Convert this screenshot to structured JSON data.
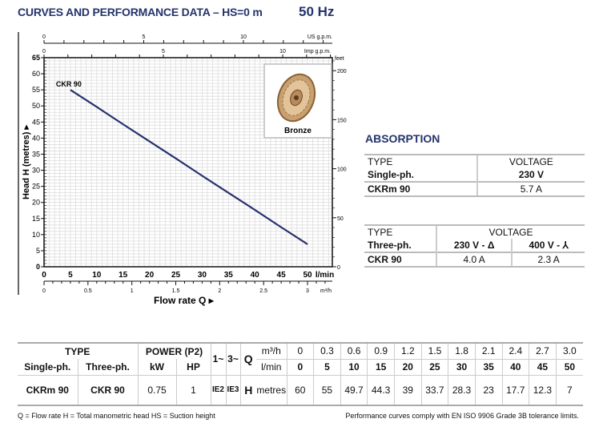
{
  "header": {
    "title": "CURVES AND PERFORMANCE DATA  –  HS=0 m",
    "frequency": "50 Hz"
  },
  "chart_data": {
    "type": "line",
    "xlabel": "Flow rate Q ▸",
    "ylabel": "Head H (metres) ▸",
    "x_unit": "l/min",
    "xlim": [
      0,
      54.7
    ],
    "ylim": [
      0,
      65
    ],
    "x_ticks": [
      0,
      5,
      10,
      15,
      20,
      25,
      30,
      35,
      40,
      45,
      50
    ],
    "y_ticks": [
      0,
      5,
      10,
      15,
      20,
      25,
      30,
      35,
      40,
      45,
      50,
      55,
      60,
      65
    ],
    "us_gpm_label": "US g.p.m.",
    "us_gpm_ticks": [
      0,
      5,
      10
    ],
    "imp_gpm_label": "Imp g.p.m.",
    "imp_gpm_ticks": [
      0,
      5,
      10
    ],
    "m3h_label": "m³/h",
    "m3h_ticks": [
      "0",
      "0.5",
      "1",
      "1.5",
      "2",
      "2.5",
      "3"
    ],
    "feet_label": "feet",
    "feet_ticks": [
      0,
      50,
      100,
      150,
      200
    ],
    "grid": true,
    "series": [
      {
        "name": "CKR 90",
        "x": [
          5,
          10,
          15,
          20,
          25,
          30,
          35,
          40,
          45,
          50
        ],
        "y": [
          55,
          49.7,
          44.3,
          39,
          33.7,
          28.3,
          23,
          17.7,
          12.3,
          7
        ]
      }
    ],
    "color": "#27306e",
    "inset_label": "Bronze"
  },
  "absorption": {
    "title": "ABSORPTION",
    "single": {
      "type": "TYPE",
      "voltage": "VOLTAGE",
      "phase": "Single-ph.",
      "v1": "230 V",
      "model": "CKRm 90",
      "a1": "5.7 A"
    },
    "three": {
      "type": "TYPE",
      "voltage": "VOLTAGE",
      "phase": "Three-ph.",
      "v1": "230 V - Δ",
      "v2": "400 V - ⅄",
      "model": "CKR 90",
      "a1": "4.0 A",
      "a2": "2.3 A"
    }
  },
  "perf": {
    "type": "TYPE",
    "power": "POWER (P2)",
    "single": "Single-ph.",
    "three": "Three-ph.",
    "kw": "kW",
    "hp": "HP",
    "ph1": "1~",
    "ph3": "3~",
    "q": "Q",
    "m3h": "m³/h",
    "lmin": "l/min",
    "h": "H",
    "metres": "metres",
    "m3h_values": [
      "0",
      "0.3",
      "0.6",
      "0.9",
      "1.2",
      "1.5",
      "1.8",
      "2.1",
      "2.4",
      "2.7",
      "3.0"
    ],
    "lmin_values": [
      "0",
      "5",
      "10",
      "15",
      "20",
      "25",
      "30",
      "35",
      "40",
      "45",
      "50"
    ],
    "row": {
      "single": "CKRm 90",
      "three": "CKR 90",
      "kw": "0.75",
      "hp": "1",
      "ie1": "IE2",
      "ie3": "IE3",
      "h_values": [
        "60",
        "55",
        "49.7",
        "44.3",
        "39",
        "33.7",
        "28.3",
        "23",
        "17.7",
        "12.3",
        "7"
      ]
    }
  },
  "footer": {
    "left": "Q = Flow rate  H = Total manometric head  HS = Suction height",
    "right": "Performance curves comply with EN ISO 9906 Grade 3B tolerance limits."
  }
}
